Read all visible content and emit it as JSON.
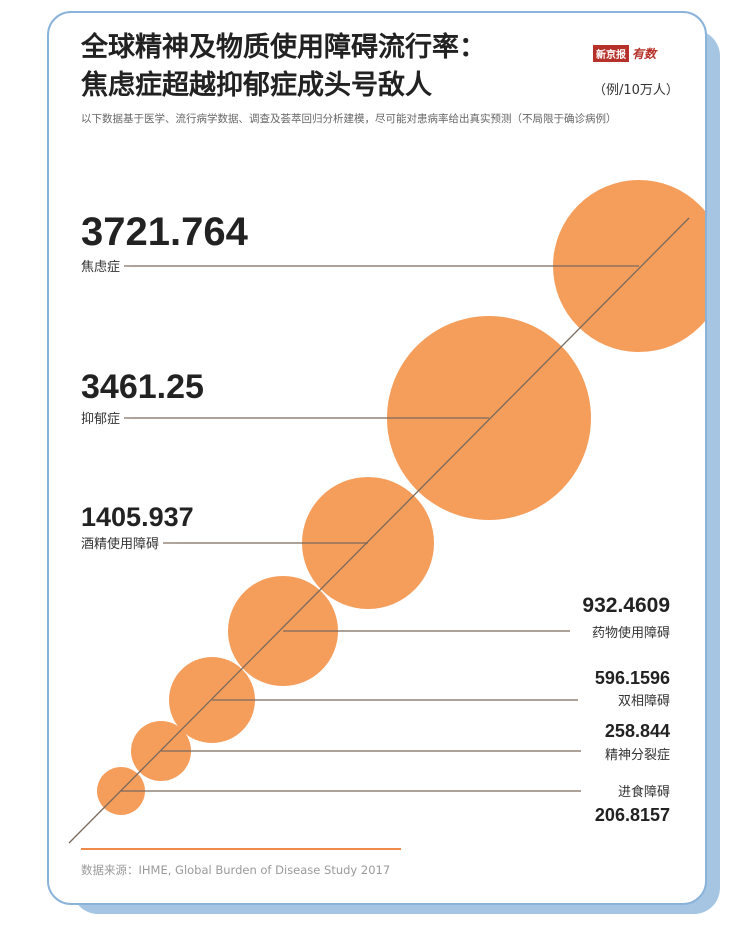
{
  "title_line1": "全球精神及物质使用障碍流行率：",
  "title_line2": "焦虑症超越抑郁症成头号敌人",
  "brand": {
    "box": "新京报",
    "text": "有数"
  },
  "unit": "（例/10万人）",
  "subtitle": "以下数据基于医学、流行病学数据、调查及荟萃回归分析建模，尽可能对患病率给出真实预测（不局限于确诊病例）",
  "source": "数据来源：IHME, Global Burden of Disease Study 2017",
  "colors": {
    "bubble": "#f59d5b",
    "line": "#7a6a5c",
    "accent": "#f08a4b",
    "text": "#222222"
  },
  "chart_data": {
    "type": "bubble",
    "series": [
      {
        "label": "焦虑症",
        "value": "3721.764",
        "v": 3721.764
      },
      {
        "label": "抑郁症",
        "value": "3461.25",
        "v": 3461.25
      },
      {
        "label": "酒精使用障碍",
        "value": "1405.937",
        "v": 1405.937
      },
      {
        "label": "药物使用障碍",
        "value": "932.4609",
        "v": 932.4609
      },
      {
        "label": "双相障碍",
        "value": "596.1596",
        "v": 596.1596
      },
      {
        "label": "精神分裂症",
        "value": "258.844",
        "v": 258.844
      },
      {
        "label": "进食障碍",
        "value": "206.8157",
        "v": 206.8157
      }
    ]
  }
}
